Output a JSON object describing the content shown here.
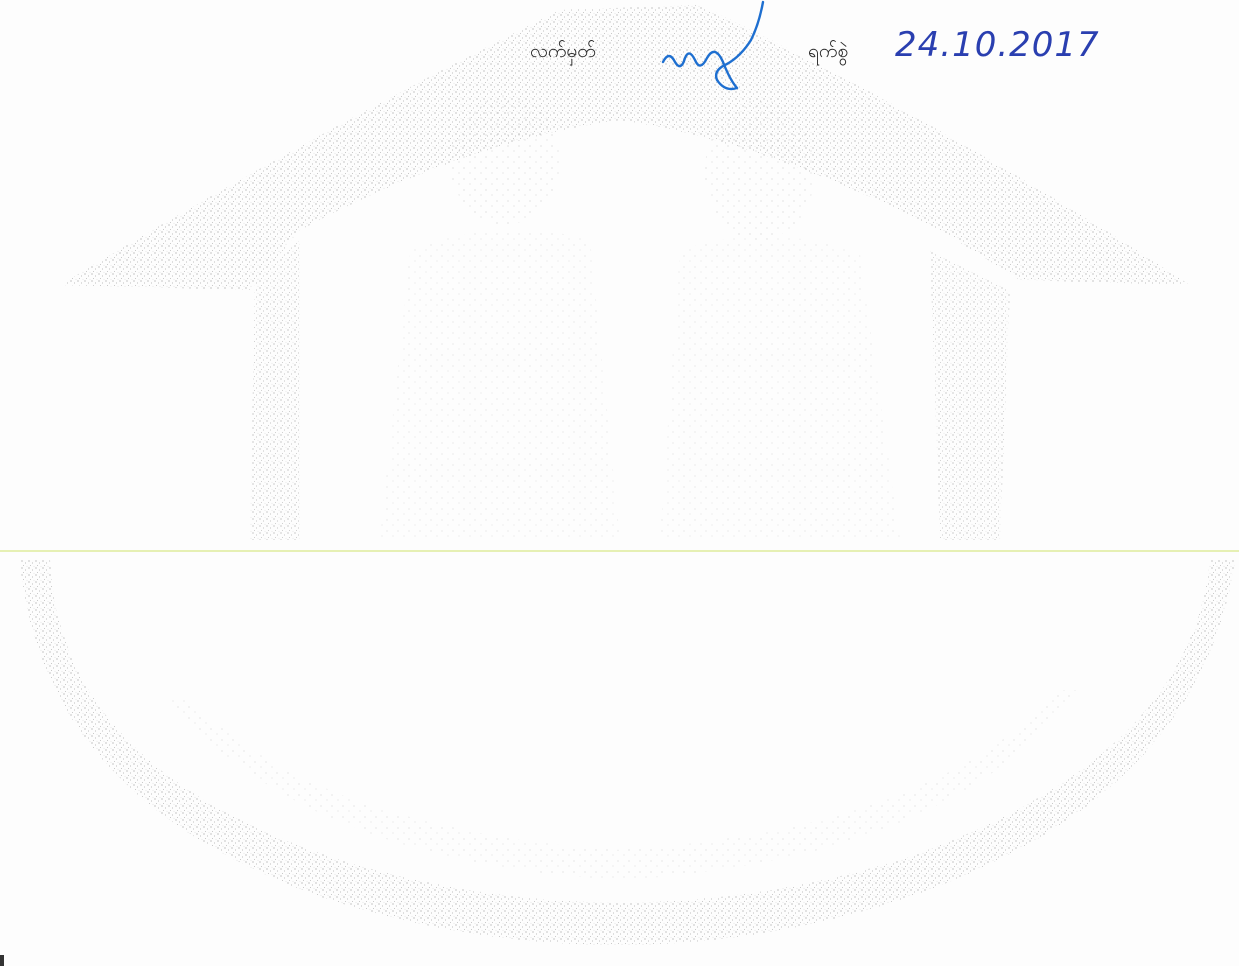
{
  "form": {
    "signature_label": "လက်မှတ်",
    "date_label": "ရက်စွဲ",
    "date_value": "24.10.2017"
  },
  "colors": {
    "ink_blue": "#2a3fb0",
    "signature_blue": "#1e6fd0",
    "stipple": "#8a8a8a",
    "scan_line": "#e6f0b4"
  }
}
